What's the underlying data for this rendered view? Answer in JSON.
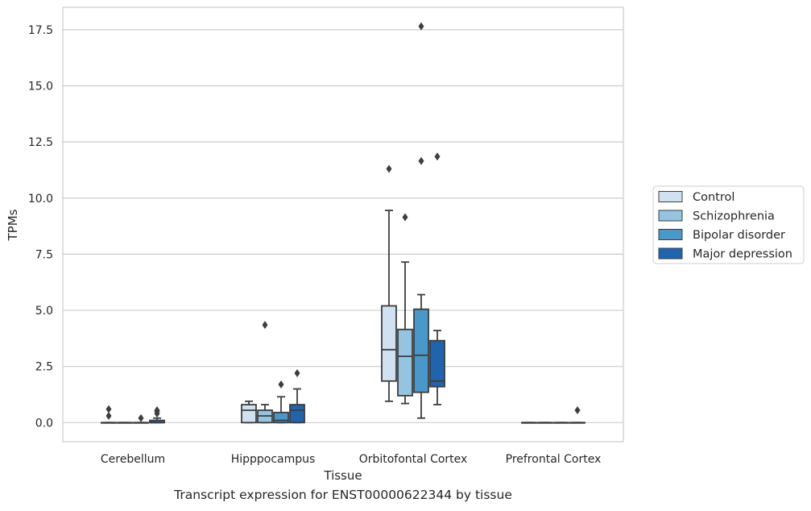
{
  "caption": "Transcript expression for ENST00000622344 by tissue",
  "chart_data": {
    "type": "box",
    "xlabel": "Tissue",
    "ylabel": "TPMs",
    "ylim": [
      -0.85,
      18.5
    ],
    "yticks": [
      0.0,
      2.5,
      5.0,
      7.5,
      10.0,
      12.5,
      15.0,
      17.5
    ],
    "ytick_labels": [
      "0.0",
      "2.5",
      "5.0",
      "7.5",
      "10.0",
      "12.5",
      "15.0",
      "17.5"
    ],
    "grid": "horizontal",
    "legend_position": "right",
    "categories": [
      "Cerebellum",
      "Hipppocampus",
      "Orbitofontal Cortex",
      "Prefrontal Cortex"
    ],
    "series": [
      {
        "name": "Control",
        "color": "#d0e1f2",
        "boxes": [
          {
            "q1": 0.0,
            "median": 0.0,
            "q3": 0.0,
            "whisker_low": 0.0,
            "whisker_high": 0.0,
            "outliers": [
              0.6,
              0.3
            ]
          },
          {
            "q1": 0.0,
            "median": 0.55,
            "q3": 0.8,
            "whisker_low": 0.0,
            "whisker_high": 0.95,
            "outliers": []
          },
          {
            "q1": 1.85,
            "median": 3.25,
            "q3": 5.2,
            "whisker_low": 0.95,
            "whisker_high": 9.45,
            "outliers": [
              11.3
            ]
          },
          {
            "q1": 0.0,
            "median": 0.0,
            "q3": 0.0,
            "whisker_low": 0.0,
            "whisker_high": 0.0,
            "outliers": []
          }
        ]
      },
      {
        "name": "Schizophrenia",
        "color": "#94c4df",
        "boxes": [
          {
            "q1": 0.0,
            "median": 0.0,
            "q3": 0.0,
            "whisker_low": 0.0,
            "whisker_high": 0.0,
            "outliers": []
          },
          {
            "q1": 0.0,
            "median": 0.3,
            "q3": 0.55,
            "whisker_low": 0.0,
            "whisker_high": 0.8,
            "outliers": [
              4.35
            ]
          },
          {
            "q1": 1.2,
            "median": 2.95,
            "q3": 4.15,
            "whisker_low": 0.85,
            "whisker_high": 7.15,
            "outliers": [
              9.15
            ]
          },
          {
            "q1": 0.0,
            "median": 0.0,
            "q3": 0.0,
            "whisker_low": 0.0,
            "whisker_high": 0.0,
            "outliers": []
          }
        ]
      },
      {
        "name": "Bipolar disorder",
        "color": "#4a98c9",
        "boxes": [
          {
            "q1": 0.0,
            "median": 0.0,
            "q3": 0.0,
            "whisker_low": 0.0,
            "whisker_high": 0.0,
            "outliers": [
              0.2
            ]
          },
          {
            "q1": 0.0,
            "median": 0.1,
            "q3": 0.45,
            "whisker_low": 0.0,
            "whisker_high": 1.15,
            "outliers": [
              1.7
            ]
          },
          {
            "q1": 1.35,
            "median": 3.0,
            "q3": 5.05,
            "whisker_low": 0.2,
            "whisker_high": 5.7,
            "outliers": [
              11.65,
              17.65
            ]
          },
          {
            "q1": 0.0,
            "median": 0.0,
            "q3": 0.0,
            "whisker_low": 0.0,
            "whisker_high": 0.0,
            "outliers": []
          }
        ]
      },
      {
        "name": "Major depression",
        "color": "#2164ab",
        "boxes": [
          {
            "q1": 0.0,
            "median": 0.0,
            "q3": 0.1,
            "whisker_low": 0.0,
            "whisker_high": 0.2,
            "outliers": [
              0.55,
              0.5,
              0.4
            ]
          },
          {
            "q1": 0.0,
            "median": 0.55,
            "q3": 0.8,
            "whisker_low": 0.0,
            "whisker_high": 1.5,
            "outliers": [
              2.2
            ]
          },
          {
            "q1": 1.6,
            "median": 1.85,
            "q3": 3.65,
            "whisker_low": 0.8,
            "whisker_high": 4.1,
            "outliers": [
              11.85
            ]
          },
          {
            "q1": 0.0,
            "median": 0.0,
            "q3": 0.0,
            "whisker_low": 0.0,
            "whisker_high": 0.0,
            "outliers": [
              0.55
            ]
          }
        ]
      }
    ]
  }
}
